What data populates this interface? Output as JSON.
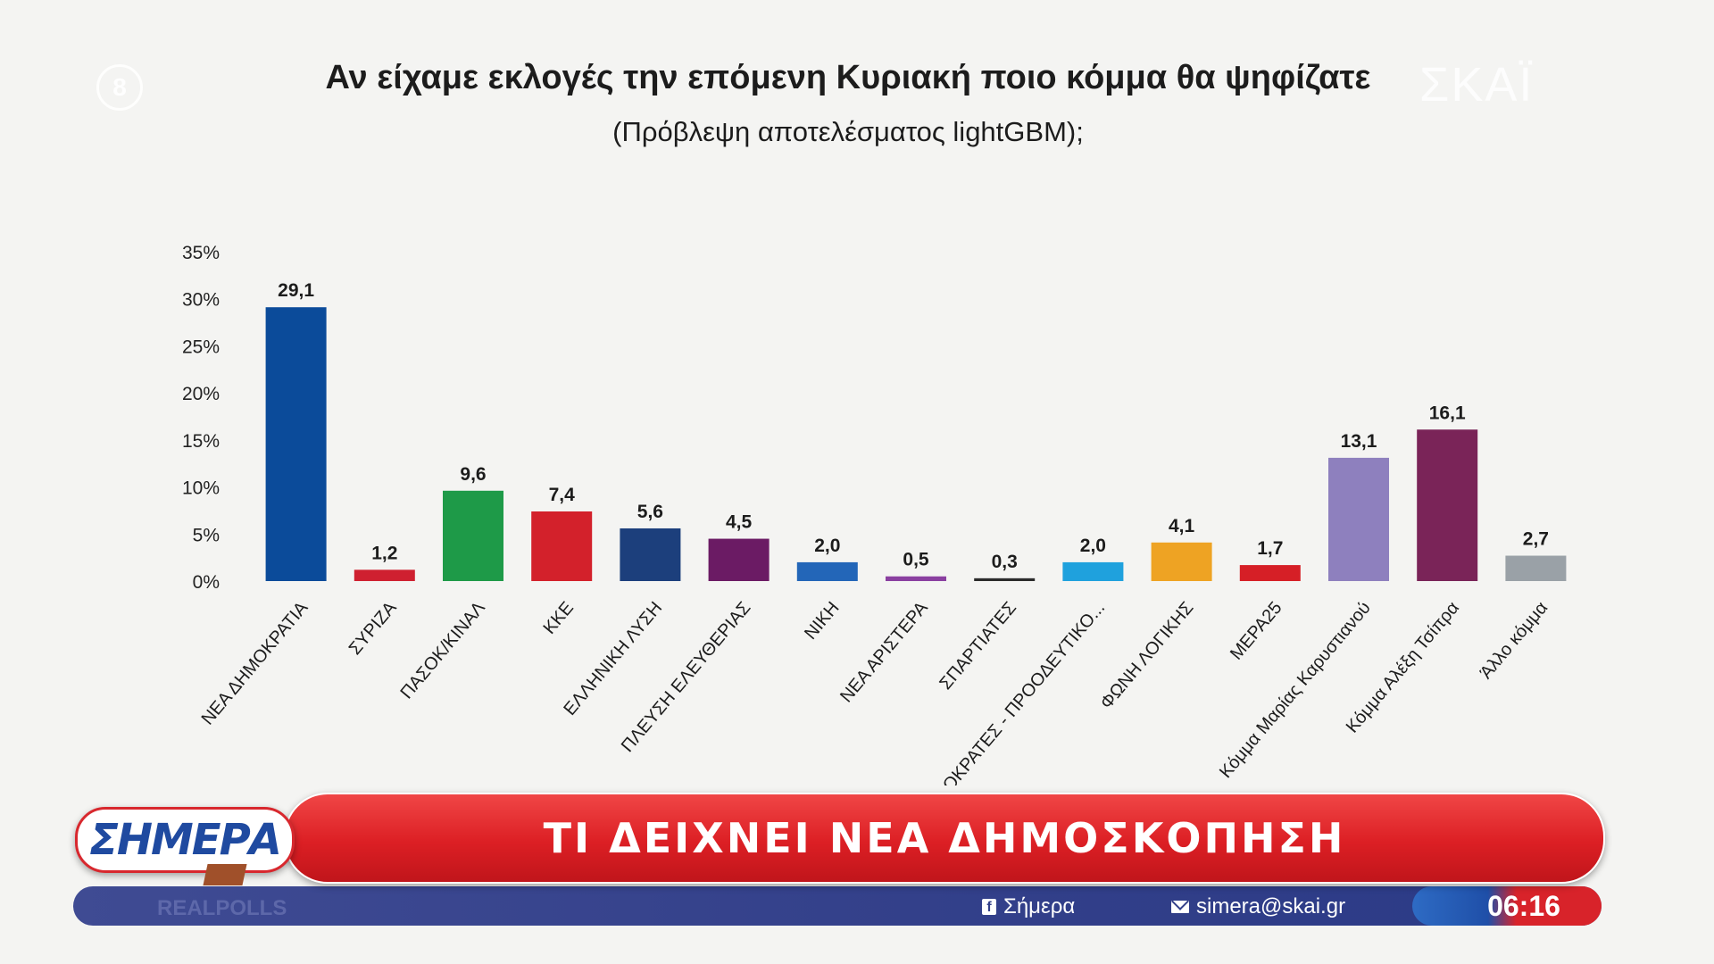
{
  "channel": {
    "corner_logo_left": "8",
    "corner_logo_right": "ΣΚΑΪ"
  },
  "chart_data": {
    "type": "bar",
    "title": "Αν είχαμε εκλογές την επόμενη Κυριακή ποιο κόμμα θα ψηφίζατε",
    "subtitle": "(Πρόβλεψη αποτελέσματος lightGBM);",
    "categories": [
      "ΝΕΑ ΔΗΜΟΚΡΑΤΙΑ",
      "ΣΥΡΙΖΑ",
      "ΠΑΣΟΚ/ΚΙΝΑΛ",
      "ΚΚΕ",
      "ΕΛΛΗΝΙΚΗ ΛΥΣΗ",
      "ΠΛΕΥΣΗ ΕΛΕΥΘΕΡΙΑΣ",
      "ΝΙΚΗ",
      "ΝΕΑ ΑΡΙΣΤΕΡΑ",
      "ΣΠΑΡΤΙΑΤΕΣ",
      "ΔΗΜΟΚΡΑΤΕΣ - ΠΡΟΟΔΕΥΤΙΚΟ...",
      "ΦΩΝΗ ΛΟΓΙΚΗΣ",
      "ΜΕΡΑ25",
      "Κόμμα Μαρίας Καρυστιανού",
      "Κόμμα Αλέξη Τσίπρα",
      "Άλλο κόμμα"
    ],
    "values": [
      29.1,
      1.2,
      9.6,
      7.4,
      5.6,
      4.5,
      2.0,
      0.5,
      0.3,
      2.0,
      4.1,
      1.7,
      13.1,
      16.1,
      2.7
    ],
    "value_labels": [
      "29,1",
      "1,2",
      "9,6",
      "7,4",
      "5,6",
      "4,5",
      "2,0",
      "0,5",
      "0,3",
      "2,0",
      "4,1",
      "1,7",
      "13,1",
      "16,1",
      "2,7"
    ],
    "colors": [
      "#0b4b9a",
      "#cf2030",
      "#1e9a48",
      "#d3212b",
      "#1c3f7c",
      "#6b1b64",
      "#2366b8",
      "#8a3fa0",
      "#2b2b2b",
      "#1fa1dd",
      "#eea323",
      "#d61f26",
      "#8e80be",
      "#7a2458",
      "#9aa1a7"
    ],
    "y_ticks": [
      "0%",
      "5%",
      "10%",
      "15%",
      "20%",
      "25%",
      "30%",
      "35%"
    ],
    "y_tick_values": [
      0,
      5,
      10,
      15,
      20,
      25,
      30,
      35
    ],
    "ylim": [
      0,
      35
    ],
    "grid": false,
    "legend": "none"
  },
  "lower_third": {
    "logo_text": "ΣΗΜΕΡΑ",
    "headline": "ΤΙ ΔΕΙΧΝΕΙ ΝΕΑ ΔΗΜΟΣΚΟΠΗΣΗ",
    "watermark": "REALPOLLS",
    "facebook_label": "Σήμερα",
    "email_label": "simera@skai.gr",
    "clock": "06:16"
  }
}
